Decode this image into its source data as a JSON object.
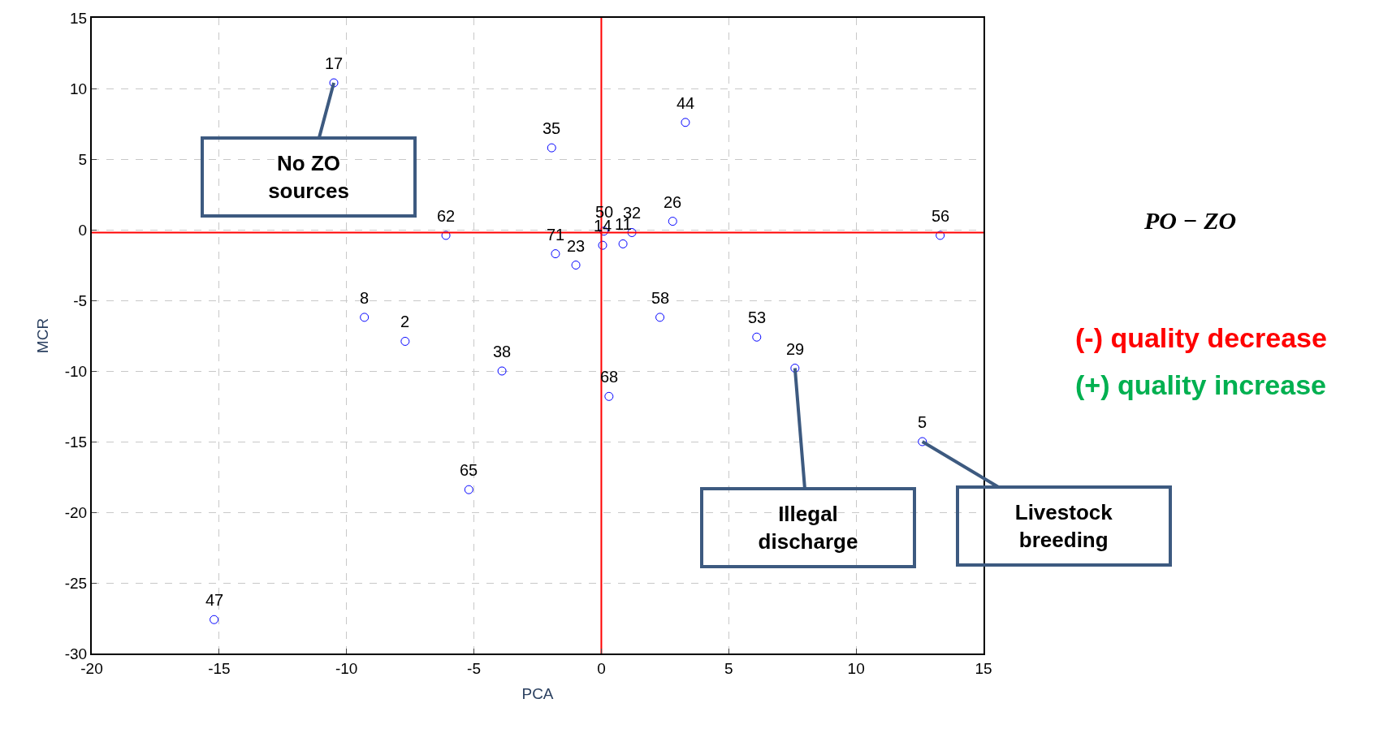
{
  "chart_data": {
    "type": "scatter",
    "xlabel": "PCA",
    "ylabel": "MCR",
    "x": [
      -10.5,
      3.3,
      -1.95,
      -6.1,
      0.1,
      0.05,
      0.85,
      1.2,
      2.8,
      13.3,
      -1.8,
      -1.0,
      -9.3,
      -7.7,
      2.3,
      6.1,
      7.6,
      -3.9,
      0.3,
      12.6,
      -5.2,
      -15.2
    ],
    "series": [
      {
        "color": "#0000ff",
        "values": [
          10.4,
          7.6,
          5.8,
          -0.4,
          -0.1,
          -1.1,
          -1.0,
          -0.2,
          0.6,
          -0.4,
          -1.7,
          -2.5,
          -6.2,
          -7.9,
          -6.2,
          -7.6,
          -9.8,
          -10.0,
          -11.8,
          -15.0,
          -18.4,
          -27.6
        ]
      }
    ],
    "marker": "circle",
    "xlim": [
      -20,
      15
    ],
    "xticks": [
      -20,
      -15,
      -10,
      -5,
      0,
      5,
      10,
      15
    ],
    "ylim": [
      -30,
      15
    ],
    "yticks": [
      -30,
      -25,
      -20,
      -15,
      -10,
      -5,
      0,
      5,
      10,
      15
    ],
    "grid": true,
    "ref_lines": [
      {
        "axis": "x",
        "value": 0,
        "color": "#ff0000"
      },
      {
        "axis": "y",
        "value": -0.2,
        "color": "#ff0000"
      }
    ],
    "annotations": [
      {
        "text": "17",
        "x": -10.5,
        "y": 10.4
      },
      {
        "text": "44",
        "x": 3.3,
        "y": 7.6
      },
      {
        "text": "35",
        "x": -1.95,
        "y": 5.8
      },
      {
        "text": "62",
        "x": -6.1,
        "y": -0.4
      },
      {
        "text": "50",
        "x": 0.1,
        "y": -0.1
      },
      {
        "text": "14",
        "x": 0.05,
        "y": -1.1
      },
      {
        "text": "11",
        "x": 0.85,
        "y": -1.0
      },
      {
        "text": "32",
        "x": 1.2,
        "y": -0.2
      },
      {
        "text": "26",
        "x": 2.8,
        "y": 0.6
      },
      {
        "text": "56",
        "x": 13.3,
        "y": -0.4
      },
      {
        "text": "71",
        "x": -1.8,
        "y": -1.7
      },
      {
        "text": "23",
        "x": -1.0,
        "y": -2.5
      },
      {
        "text": "8",
        "x": -9.3,
        "y": -6.2
      },
      {
        "text": "2",
        "x": -7.7,
        "y": -7.9
      },
      {
        "text": "58",
        "x": 2.3,
        "y": -6.2
      },
      {
        "text": "53",
        "x": 6.1,
        "y": -7.6
      },
      {
        "text": "29",
        "x": 7.6,
        "y": -9.8
      },
      {
        "text": "38",
        "x": -3.9,
        "y": -10.0
      },
      {
        "text": "68",
        "x": 0.3,
        "y": -11.8
      },
      {
        "text": "5",
        "x": 12.6,
        "y": -15.0
      },
      {
        "text": "65",
        "x": -5.2,
        "y": -18.4
      },
      {
        "text": "47",
        "x": -15.2,
        "y": -27.6
      },
      {
        "text": "No ZO sources",
        "x": -10.5,
        "y": 10.4
      },
      {
        "text": "Illegal discharge",
        "x": 7.6,
        "y": -9.8
      },
      {
        "text": "Livestock breeding",
        "x": 12.6,
        "y": -15.0
      },
      "PO − ZO",
      "(-) quality decrease",
      "(+) quality increase"
    ]
  }
}
